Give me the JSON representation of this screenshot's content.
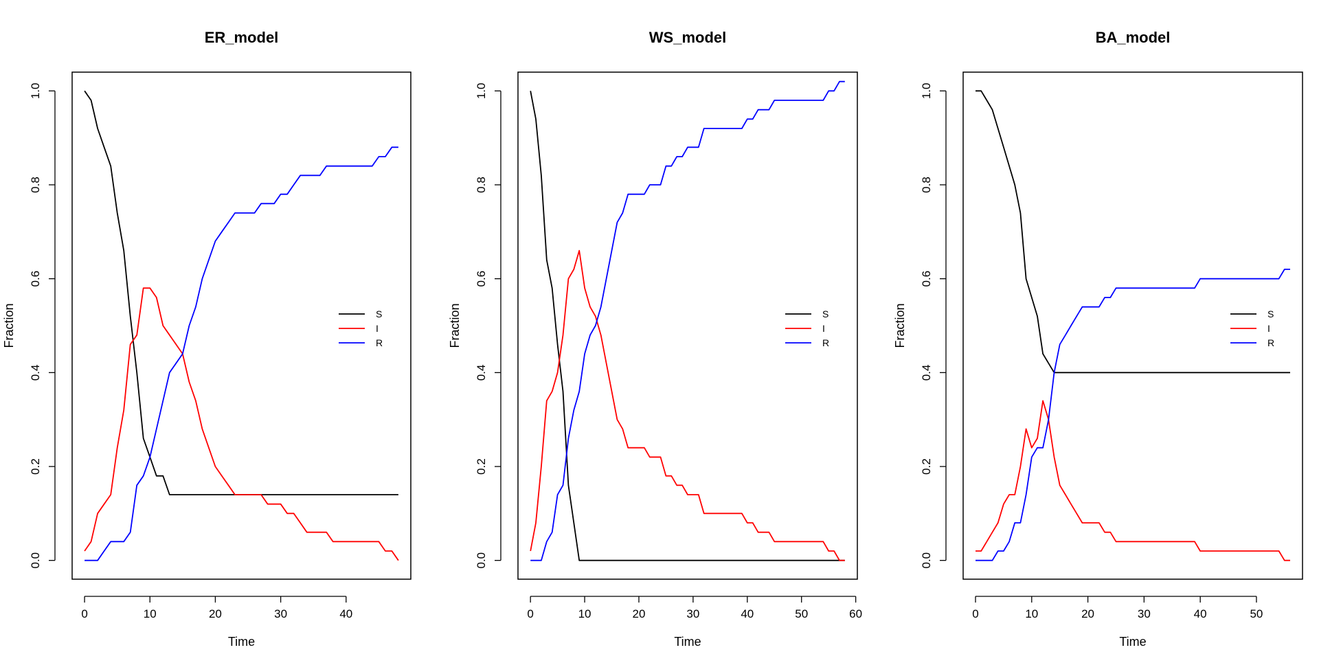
{
  "figure": {
    "colors": {
      "S": "#000000",
      "I": "#ff0000",
      "R": "#0000ff"
    }
  },
  "chart_data": [
    {
      "type": "line",
      "title": "ER_model",
      "xlabel": "Time",
      "ylabel": "Fraction",
      "xlim": [
        -1.9,
        49.9
      ],
      "ylim": [
        -0.04,
        1.04
      ],
      "xticks": [
        0,
        10,
        20,
        30,
        40
      ],
      "yticks": [
        0.0,
        0.2,
        0.4,
        0.6,
        0.8,
        1.0
      ],
      "grid": false,
      "legend_position": "right",
      "series": [
        {
          "name": "S",
          "color": "#000000",
          "x": [
            0,
            1,
            2,
            3,
            4,
            5,
            6,
            7,
            8,
            9,
            10,
            11,
            12,
            13,
            14,
            15,
            16,
            17,
            18,
            19,
            20,
            21,
            22,
            23,
            24,
            25,
            26,
            27,
            28,
            29,
            30,
            31,
            32,
            33,
            34,
            35,
            36,
            37,
            38,
            39,
            40,
            41,
            42,
            43,
            44,
            45,
            46,
            47,
            48
          ],
          "y": [
            1.0,
            0.98,
            0.92,
            0.88,
            0.84,
            0.74,
            0.66,
            0.52,
            0.4,
            0.26,
            0.22,
            0.18,
            0.18,
            0.14,
            0.14,
            0.14,
            0.14,
            0.14,
            0.14,
            0.14,
            0.14,
            0.14,
            0.14,
            0.14,
            0.14,
            0.14,
            0.14,
            0.14,
            0.14,
            0.14,
            0.14,
            0.14,
            0.14,
            0.14,
            0.14,
            0.14,
            0.14,
            0.14,
            0.14,
            0.14,
            0.14,
            0.14,
            0.14,
            0.14,
            0.14,
            0.14,
            0.14,
            0.14,
            0.14
          ]
        },
        {
          "name": "I",
          "color": "#ff0000",
          "x": [
            0,
            1,
            2,
            3,
            4,
            5,
            6,
            7,
            8,
            9,
            10,
            11,
            12,
            13,
            14,
            15,
            16,
            17,
            18,
            19,
            20,
            21,
            22,
            23,
            24,
            25,
            26,
            27,
            28,
            29,
            30,
            31,
            32,
            33,
            34,
            35,
            36,
            37,
            38,
            39,
            40,
            41,
            42,
            43,
            44,
            45,
            46,
            47,
            48
          ],
          "y": [
            0.02,
            0.04,
            0.1,
            0.12,
            0.14,
            0.24,
            0.32,
            0.46,
            0.48,
            0.58,
            0.58,
            0.56,
            0.5,
            0.48,
            0.46,
            0.44,
            0.38,
            0.34,
            0.28,
            0.24,
            0.2,
            0.18,
            0.16,
            0.14,
            0.14,
            0.14,
            0.14,
            0.14,
            0.12,
            0.12,
            0.12,
            0.1,
            0.1,
            0.08,
            0.06,
            0.06,
            0.06,
            0.06,
            0.04,
            0.04,
            0.04,
            0.04,
            0.04,
            0.04,
            0.04,
            0.04,
            0.02,
            0.02,
            0.0
          ]
        },
        {
          "name": "R",
          "color": "#0000ff",
          "x": [
            0,
            1,
            2,
            3,
            4,
            5,
            6,
            7,
            8,
            9,
            10,
            11,
            12,
            13,
            14,
            15,
            16,
            17,
            18,
            19,
            20,
            21,
            22,
            23,
            24,
            25,
            26,
            27,
            28,
            29,
            30,
            31,
            32,
            33,
            34,
            35,
            36,
            37,
            38,
            39,
            40,
            41,
            42,
            43,
            44,
            45,
            46,
            47,
            48
          ],
          "y": [
            0.0,
            0.0,
            0.0,
            0.02,
            0.04,
            0.04,
            0.04,
            0.06,
            0.16,
            0.18,
            0.22,
            0.28,
            0.34,
            0.4,
            0.42,
            0.44,
            0.5,
            0.54,
            0.6,
            0.64,
            0.68,
            0.7,
            0.72,
            0.74,
            0.74,
            0.74,
            0.74,
            0.76,
            0.76,
            0.76,
            0.78,
            0.78,
            0.8,
            0.82,
            0.82,
            0.82,
            0.82,
            0.84,
            0.84,
            0.84,
            0.84,
            0.84,
            0.84,
            0.84,
            0.84,
            0.86,
            0.86,
            0.88,
            0.88
          ]
        }
      ]
    },
    {
      "type": "line",
      "title": "WS_model",
      "xlabel": "Time",
      "ylabel": "Fraction",
      "xlim": [
        -2.3,
        60.3
      ],
      "ylim": [
        -0.04,
        1.04
      ],
      "xticks": [
        0,
        10,
        20,
        30,
        40,
        50,
        60
      ],
      "yticks": [
        0.0,
        0.2,
        0.4,
        0.6,
        0.8,
        1.0
      ],
      "grid": false,
      "legend_position": "right",
      "series": [
        {
          "name": "S",
          "color": "#000000",
          "x": [
            0,
            1,
            2,
            3,
            4,
            5,
            6,
            7,
            8,
            9,
            10,
            58
          ],
          "y": [
            1.0,
            0.94,
            0.82,
            0.64,
            0.58,
            0.46,
            0.36,
            0.16,
            0.08,
            0.0,
            0.0,
            0.0
          ]
        },
        {
          "name": "I",
          "color": "#ff0000",
          "x": [
            0,
            1,
            2,
            3,
            4,
            5,
            6,
            7,
            8,
            9,
            10,
            11,
            12,
            13,
            14,
            15,
            16,
            17,
            18,
            19,
            20,
            21,
            22,
            23,
            24,
            25,
            26,
            27,
            28,
            29,
            30,
            31,
            32,
            33,
            34,
            35,
            36,
            37,
            38,
            39,
            40,
            41,
            42,
            43,
            44,
            45,
            46,
            47,
            48,
            49,
            50,
            51,
            52,
            53,
            54,
            55,
            56,
            57,
            58
          ],
          "y": [
            0.02,
            0.08,
            0.2,
            0.34,
            0.36,
            0.4,
            0.48,
            0.6,
            0.62,
            0.66,
            0.58,
            0.54,
            0.52,
            0.48,
            0.42,
            0.36,
            0.3,
            0.28,
            0.24,
            0.24,
            0.24,
            0.24,
            0.22,
            0.22,
            0.22,
            0.18,
            0.18,
            0.16,
            0.16,
            0.14,
            0.14,
            0.14,
            0.1,
            0.1,
            0.1,
            0.1,
            0.1,
            0.1,
            0.1,
            0.1,
            0.08,
            0.08,
            0.06,
            0.06,
            0.06,
            0.04,
            0.04,
            0.04,
            0.04,
            0.04,
            0.04,
            0.04,
            0.04,
            0.04,
            0.04,
            0.02,
            0.02,
            0.0,
            0.0
          ]
        },
        {
          "name": "R",
          "color": "#0000ff",
          "x": [
            0,
            1,
            2,
            3,
            4,
            5,
            6,
            7,
            8,
            9,
            10,
            11,
            12,
            13,
            14,
            15,
            16,
            17,
            18,
            19,
            20,
            21,
            22,
            23,
            24,
            25,
            26,
            27,
            28,
            29,
            30,
            31,
            32,
            33,
            34,
            35,
            36,
            37,
            38,
            39,
            40,
            41,
            42,
            43,
            44,
            45,
            46,
            47,
            48,
            49,
            50,
            51,
            52,
            53,
            54,
            55,
            56,
            57,
            58
          ],
          "y": [
            0.0,
            0.0,
            0.0,
            0.04,
            0.06,
            0.14,
            0.16,
            0.26,
            0.32,
            0.36,
            0.44,
            0.48,
            0.5,
            0.54,
            0.6,
            0.66,
            0.72,
            0.74,
            0.78,
            0.78,
            0.78,
            0.78,
            0.8,
            0.8,
            0.8,
            0.84,
            0.84,
            0.86,
            0.86,
            0.88,
            0.88,
            0.88,
            0.92,
            0.92,
            0.92,
            0.92,
            0.92,
            0.92,
            0.92,
            0.92,
            0.94,
            0.94,
            0.96,
            0.96,
            0.96,
            0.98,
            0.98,
            0.98,
            0.98,
            0.98,
            0.98,
            0.98,
            0.98,
            0.98,
            0.98,
            1.0,
            1.0,
            1.02,
            1.02
          ]
        }
      ]
    },
    {
      "type": "line",
      "title": "BA_model",
      "xlabel": "Time",
      "ylabel": "Fraction",
      "xlim": [
        -2.2,
        58.2
      ],
      "ylim": [
        -0.04,
        1.04
      ],
      "xticks": [
        0,
        10,
        20,
        30,
        40,
        50
      ],
      "yticks": [
        0.0,
        0.2,
        0.4,
        0.6,
        0.8,
        1.0
      ],
      "grid": false,
      "legend_position": "right",
      "series": [
        {
          "name": "S",
          "color": "#000000",
          "x": [
            0,
            1,
            2,
            3,
            4,
            5,
            6,
            7,
            8,
            9,
            10,
            11,
            12,
            13,
            14,
            56
          ],
          "y": [
            1.0,
            1.0,
            0.98,
            0.96,
            0.92,
            0.88,
            0.84,
            0.8,
            0.74,
            0.6,
            0.56,
            0.52,
            0.44,
            0.42,
            0.4,
            0.4
          ]
        },
        {
          "name": "I",
          "color": "#ff0000",
          "x": [
            0,
            1,
            2,
            3,
            4,
            5,
            6,
            7,
            8,
            9,
            10,
            11,
            12,
            13,
            14,
            15,
            16,
            17,
            18,
            19,
            20,
            21,
            22,
            23,
            24,
            25,
            26,
            27,
            28,
            29,
            30,
            31,
            32,
            33,
            34,
            35,
            36,
            37,
            38,
            39,
            40,
            41,
            42,
            43,
            44,
            45,
            46,
            47,
            48,
            49,
            50,
            51,
            52,
            53,
            54,
            55,
            56
          ],
          "y": [
            0.02,
            0.02,
            0.04,
            0.06,
            0.08,
            0.12,
            0.14,
            0.14,
            0.2,
            0.28,
            0.24,
            0.26,
            0.34,
            0.3,
            0.22,
            0.16,
            0.14,
            0.12,
            0.1,
            0.08,
            0.08,
            0.08,
            0.08,
            0.06,
            0.06,
            0.04,
            0.04,
            0.04,
            0.04,
            0.04,
            0.04,
            0.04,
            0.04,
            0.04,
            0.04,
            0.04,
            0.04,
            0.04,
            0.04,
            0.04,
            0.02,
            0.02,
            0.02,
            0.02,
            0.02,
            0.02,
            0.02,
            0.02,
            0.02,
            0.02,
            0.02,
            0.02,
            0.02,
            0.02,
            0.02,
            0.0,
            0.0
          ]
        },
        {
          "name": "R",
          "color": "#0000ff",
          "x": [
            0,
            1,
            2,
            3,
            4,
            5,
            6,
            7,
            8,
            9,
            10,
            11,
            12,
            13,
            14,
            15,
            16,
            17,
            18,
            19,
            20,
            21,
            22,
            23,
            24,
            25,
            26,
            27,
            28,
            29,
            30,
            31,
            32,
            33,
            34,
            35,
            36,
            37,
            38,
            39,
            40,
            41,
            42,
            43,
            44,
            45,
            46,
            47,
            48,
            49,
            50,
            51,
            52,
            53,
            54,
            55,
            56
          ],
          "y": [
            0.0,
            0.0,
            0.0,
            0.0,
            0.02,
            0.02,
            0.04,
            0.08,
            0.08,
            0.14,
            0.22,
            0.24,
            0.24,
            0.3,
            0.4,
            0.46,
            0.48,
            0.5,
            0.52,
            0.54,
            0.54,
            0.54,
            0.54,
            0.56,
            0.56,
            0.58,
            0.58,
            0.58,
            0.58,
            0.58,
            0.58,
            0.58,
            0.58,
            0.58,
            0.58,
            0.58,
            0.58,
            0.58,
            0.58,
            0.58,
            0.6,
            0.6,
            0.6,
            0.6,
            0.6,
            0.6,
            0.6,
            0.6,
            0.6,
            0.6,
            0.6,
            0.6,
            0.6,
            0.6,
            0.6,
            0.62,
            0.62
          ]
        }
      ]
    }
  ]
}
